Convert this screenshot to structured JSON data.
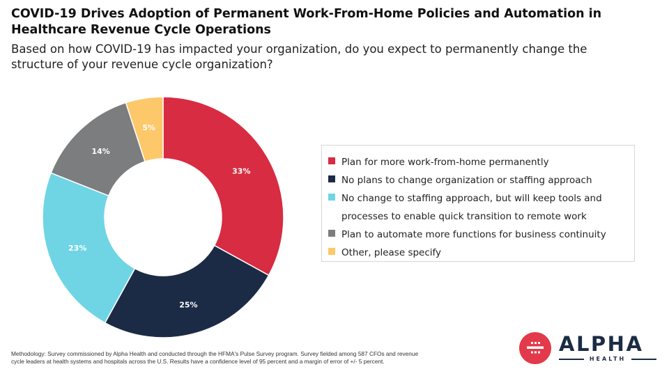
{
  "header": {
    "title": "COVID-19 Drives Adoption of Permanent Work-From-Home Policies and Automation in Healthcare Revenue Cycle Operations",
    "subtitle": "Based on how COVID-19 has impacted your organization, do you expect to permanently change the structure of your revenue cycle organization?"
  },
  "chart_data": {
    "type": "pie",
    "donut": true,
    "start": "12 o'clock, clockwise",
    "legend_position": "right",
    "slices": [
      {
        "label": "Plan for more work-from-home permanently",
        "value": 33,
        "display": "33%",
        "color": "#d72c41",
        "label_color": "#ffffff"
      },
      {
        "label": "No plans to change organization or staffing approach",
        "value": 25,
        "display": "25%",
        "color": "#1c2b45",
        "label_color": "#ffffff"
      },
      {
        "label": "No change to staffing approach, but will keep tools and processes to enable quick transition to remote work",
        "value": 23,
        "display": "23%",
        "color": "#6fd5e5",
        "label_color": "#ffffff"
      },
      {
        "label": "Plan to automate more functions for business continuity",
        "value": 14,
        "display": "14%",
        "color": "#7b7d7f",
        "label_color": "#ffffff"
      },
      {
        "label": "Other, please specify",
        "value": 5,
        "display": "5%",
        "color": "#fdc86a",
        "label_color": "#ffffff"
      }
    ]
  },
  "footer": {
    "methodology": "Methodology: Survey commissioned by Alpha Health and conducted through the HFMA's Pulse Survey program. Survey fielded among 587 CFOs and revenue cycle leaders at health systems and hospitals across the U.S. Results have a confidence level of 95 percent and a margin of error of +/- 5 percent."
  },
  "logo": {
    "word": "ALPHA",
    "sub": "HEALTH",
    "mark_color": "#e23a4a",
    "text_color": "#1c2b45"
  }
}
